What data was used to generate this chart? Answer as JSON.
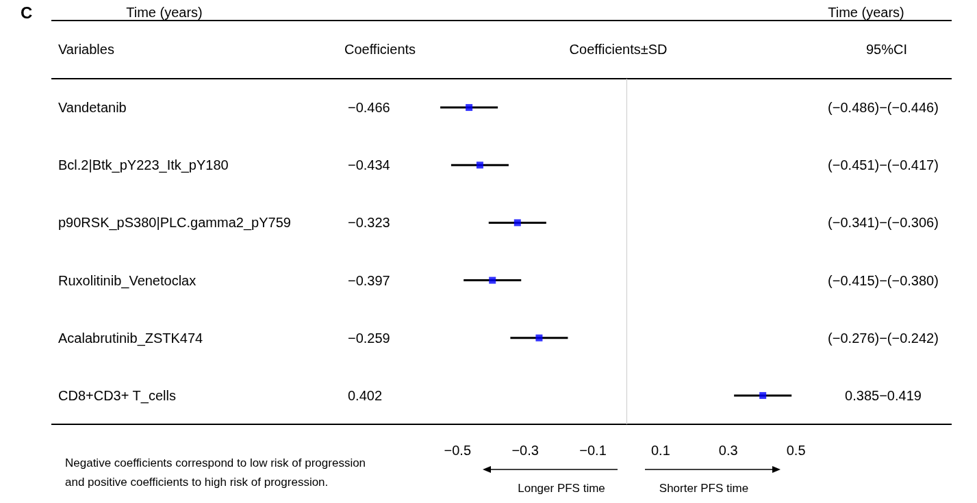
{
  "chart_data": {
    "type": "scatter",
    "orientation": "horizontal",
    "categories": [
      "Vandetanib",
      "Bcl.2|Btk_pY223_Itk_pY180",
      "p90RSK_pS380|PLC.gamma2_pY759",
      "Ruxolitinib_Venetoclax",
      "Acalabrutinib_ZSTK474",
      "CD8+CD3+ T_cells"
    ],
    "series": [
      {
        "color": "#0000ff",
        "values": [
          -0.466,
          -0.434,
          -0.323,
          -0.397,
          -0.259,
          0.402
        ],
        "errors": [
          0.085,
          0.085,
          0.085,
          0.085,
          0.085,
          0.085
        ]
      }
    ],
    "marker": "square",
    "grid": false,
    "xlim": [
      -1.68,
      0.96
    ],
    "xticks": [
      -0.5,
      -0.3,
      -0.1,
      0.1,
      0.3,
      0.5
    ],
    "ref_lines": [
      {
        "axis": "x",
        "value": 0,
        "color": "#cccccc"
      }
    ],
    "annotations": [
      "C",
      "Time (years)",
      "Time (years)",
      "Variables",
      "Coefficients",
      "Coefficients±SD",
      "95%CI",
      "−0.466",
      "−0.434",
      "−0.323",
      "−0.397",
      "−0.259",
      "0.402",
      "(−0.486)−(−0.446)",
      "(−0.451)−(−0.417)",
      "(−0.341)−(−0.306)",
      "(−0.415)−(−0.380)",
      "(−0.276)−(−0.242)",
      "0.385−0.419",
      "Longer PFS time",
      "Shorter PFS time",
      "Negative coefficients correspond to low risk of progression and positive coefficients to high risk of progression."
    ]
  }
}
